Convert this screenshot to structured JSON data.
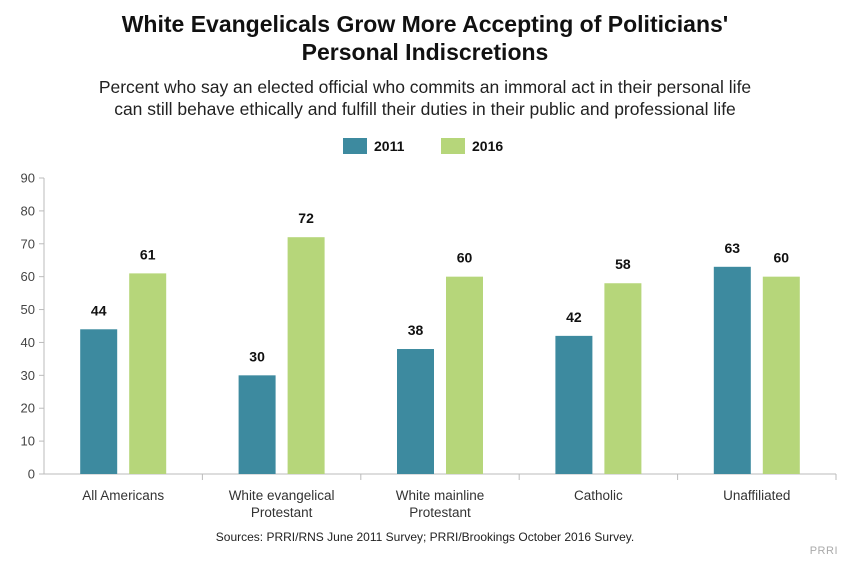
{
  "header": {
    "title_line1": "White Evangelicals Grow More Accepting of Politicians'",
    "title_line2": "Personal Indiscretions",
    "subtitle_line1": "Percent who say an elected official who commits an immoral act in their personal life",
    "subtitle_line2": "can still behave ethically and fulfill their duties in their public and professional life"
  },
  "footer": {
    "source": "Sources: PRRI/RNS June 2011 Survey; PRRI/Brookings October 2016 Survey.",
    "brand": "PRRI"
  },
  "chart_data": {
    "type": "bar",
    "title": "White Evangelicals Grow More Accepting of Politicians' Personal Indiscretions",
    "categories": [
      [
        "All Americans"
      ],
      [
        "White evangelical",
        "Protestant"
      ],
      [
        "White mainline",
        "Protestant"
      ],
      [
        "Catholic"
      ],
      [
        "Unaffiliated"
      ]
    ],
    "series": [
      {
        "name": "2011",
        "color": "#3d8a9f",
        "values": [
          44,
          30,
          38,
          42,
          63
        ]
      },
      {
        "name": "2016",
        "color": "#b6d67a",
        "values": [
          61,
          72,
          60,
          58,
          60
        ]
      }
    ],
    "ylim": [
      0,
      90
    ],
    "yticks": [
      0,
      10,
      20,
      30,
      40,
      50,
      60,
      70,
      80,
      90
    ],
    "legend_position": "top-center",
    "grid": false
  }
}
